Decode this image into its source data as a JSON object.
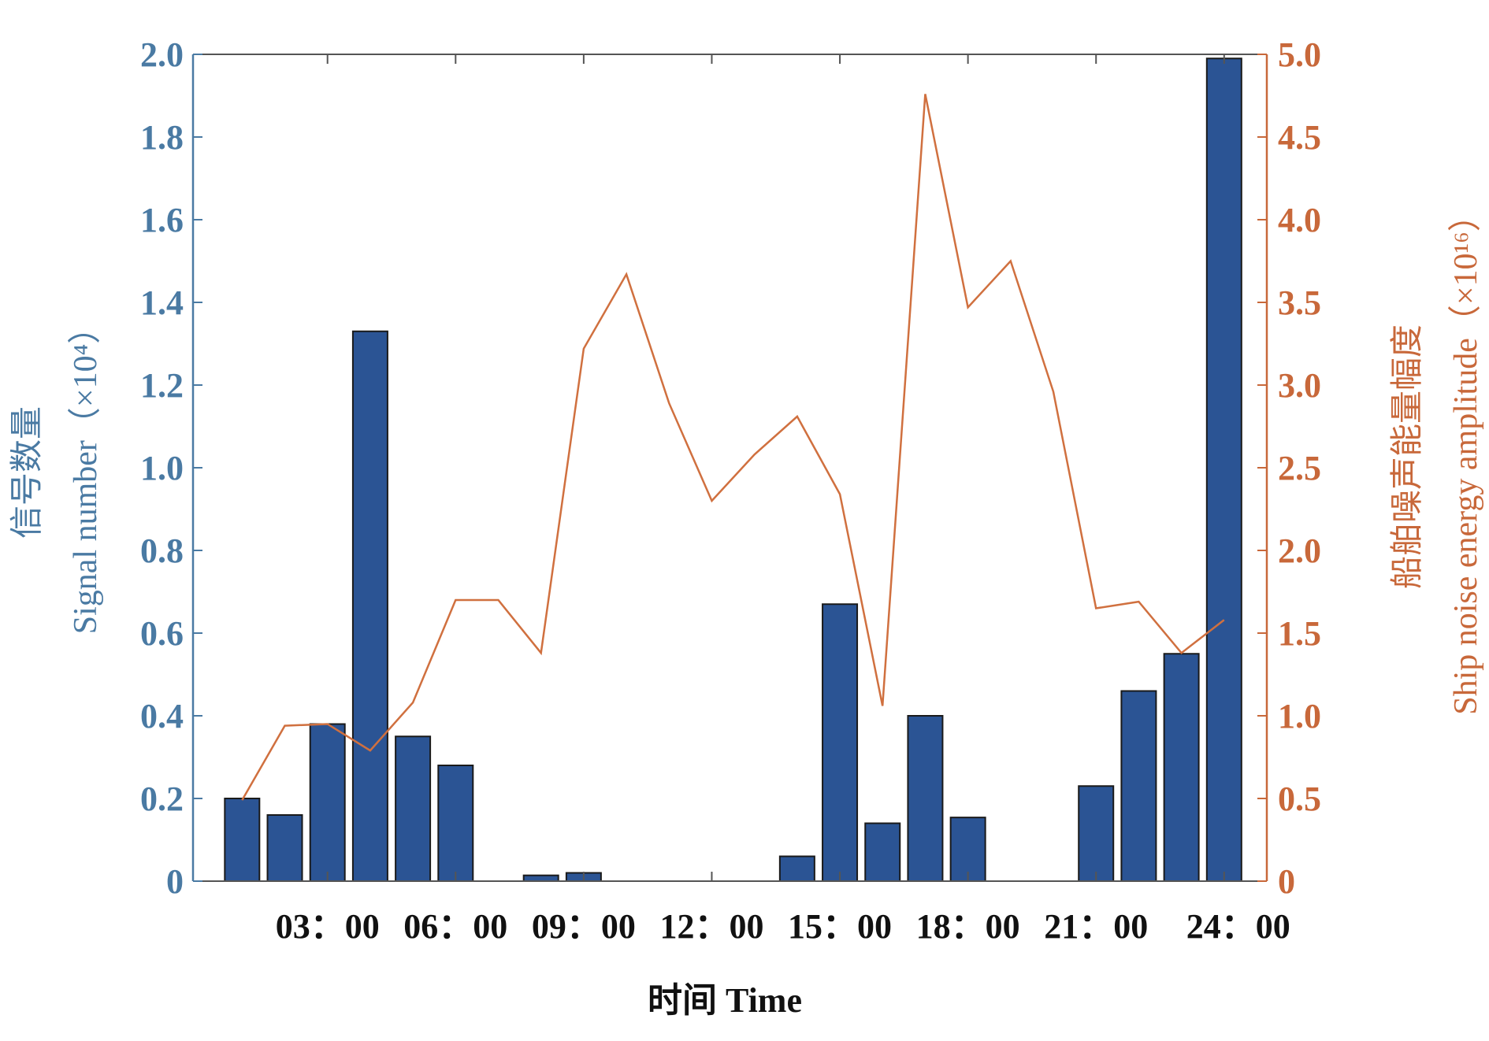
{
  "chart_data": {
    "type": "bar+line",
    "xlabel": "时间 Time",
    "ylabel_left_cn": "信号数量",
    "ylabel_left_en": "Signal number（×10⁴）",
    "ylabel_right_cn": "船舶噪声能量幅度",
    "ylabel_right_en": "Ship noise energy amplitude（×10¹⁶）",
    "ylim_left": [
      0,
      2.0
    ],
    "ylim_right": [
      0,
      5.0
    ],
    "yticks_left": [
      "0",
      "0.2",
      "0.4",
      "0.6",
      "0.8",
      "1.0",
      "1.2",
      "1.4",
      "1.6",
      "1.8",
      "2.0"
    ],
    "yticks_right": [
      "0",
      "0.5",
      "1.0",
      "1.5",
      "2.0",
      "2.5",
      "3.0",
      "3.5",
      "4.0",
      "4.5",
      "5.0"
    ],
    "xtick_labels": [
      "03：00",
      "06：00",
      "09：00",
      "12：00",
      "15：00",
      "18：00",
      "21：00",
      "24：00"
    ],
    "xtick_hours": [
      3,
      6,
      9,
      12,
      15,
      18,
      21,
      24
    ],
    "x": [
      1,
      2,
      3,
      4,
      5,
      6,
      7,
      8,
      9,
      10,
      11,
      12,
      13,
      14,
      15,
      16,
      17,
      18,
      19,
      20,
      21,
      22,
      23,
      24
    ],
    "series": [
      {
        "name": "Signal number",
        "type": "bar",
        "axis": "left",
        "color": "#2b5494",
        "values": [
          0.2,
          0.16,
          0.38,
          1.33,
          0.35,
          0.28,
          0,
          0.014,
          0.02,
          0,
          0,
          0,
          0,
          0.06,
          0.67,
          0.14,
          0.4,
          0.154,
          0,
          0,
          0.23,
          0.46,
          0.55,
          1.99
        ]
      },
      {
        "name": "Ship noise energy amplitude",
        "type": "line",
        "axis": "right",
        "color": "#d0703f",
        "values": [
          0.49,
          0.94,
          0.95,
          0.79,
          1.08,
          1.7,
          1.7,
          1.38,
          3.22,
          3.67,
          2.89,
          2.3,
          2.58,
          2.81,
          2.34,
          1.06,
          4.76,
          3.47,
          3.75,
          2.96,
          1.65,
          1.69,
          1.38,
          1.58
        ]
      }
    ],
    "colors": {
      "left_axis": "#4a7aa3",
      "right_axis": "#c8683a",
      "frame": "#555555"
    }
  }
}
